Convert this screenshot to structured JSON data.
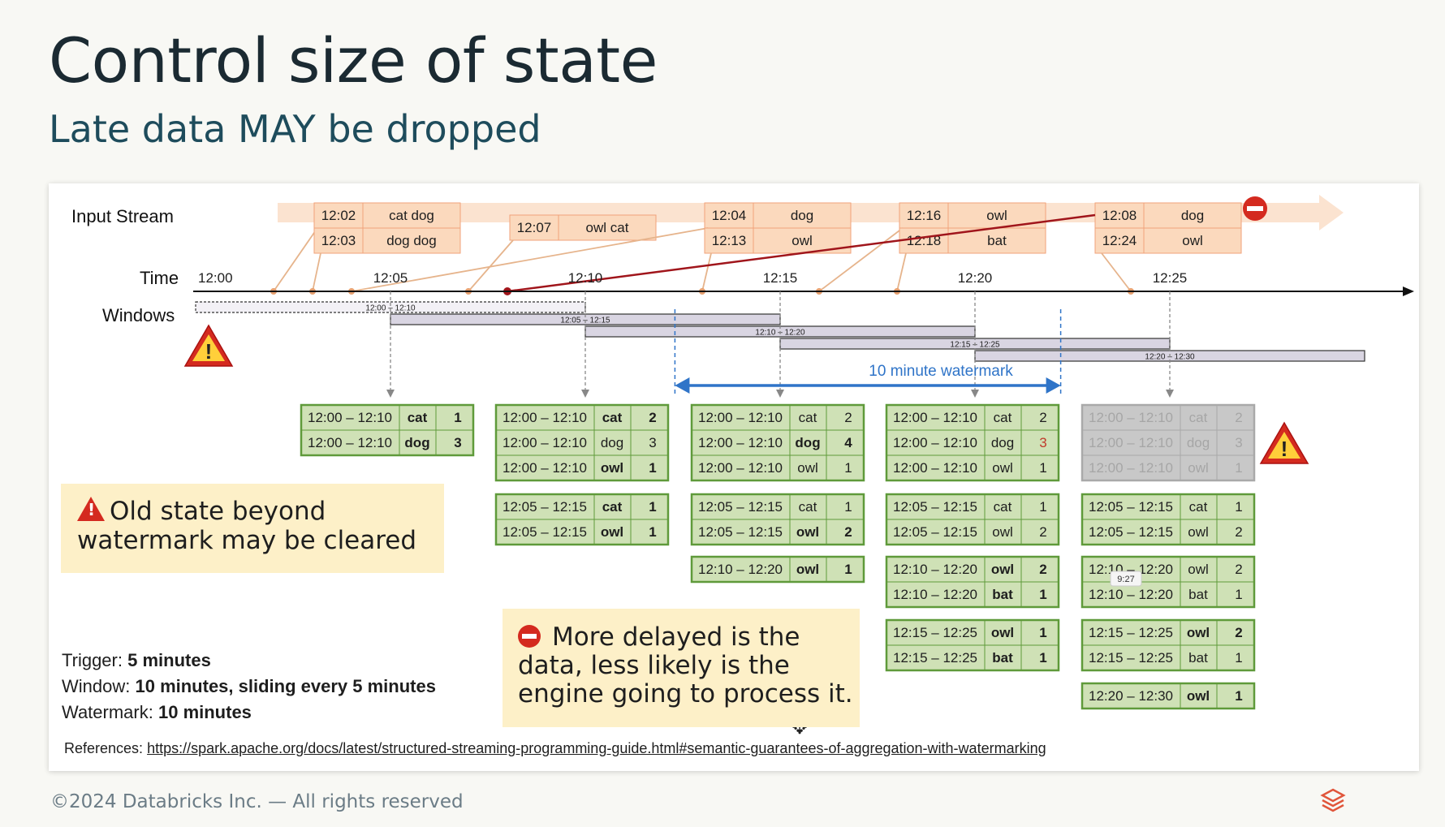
{
  "slide": {
    "title": "Control size of state",
    "subtitle": "Late data MAY be dropped",
    "footer": "©2024 Databricks Inc. — All rights reserved",
    "logo_icon": "databricks-logo-icon"
  },
  "diagram": {
    "row_labels": {
      "input": "Input Stream",
      "time": "Time",
      "windows": "Windows"
    },
    "time_ticks": [
      "12:00",
      "12:05",
      "12:10",
      "12:15",
      "12:20",
      "12:25"
    ],
    "events": [
      {
        "rows": [
          [
            "12:02",
            "cat dog"
          ],
          [
            "12:03",
            "dog dog"
          ]
        ]
      },
      {
        "rows": [
          [
            "12:07",
            "owl cat"
          ]
        ]
      },
      {
        "rows": [
          [
            "12:04",
            "dog"
          ],
          [
            "12:13",
            "owl"
          ]
        ]
      },
      {
        "rows": [
          [
            "12:16",
            "owl"
          ],
          [
            "12:18",
            "bat"
          ]
        ]
      },
      {
        "rows": [
          [
            "12:08",
            "dog"
          ],
          [
            "12:24",
            "owl"
          ]
        ]
      }
    ],
    "windows": [
      "12:00 – 12:10",
      "12:05 – 12:15",
      "12:10 – 12:20",
      "12:15 – 12:25",
      "12:20 – 12:30"
    ],
    "watermark_label": "10 minute watermark",
    "state_columns": [
      {
        "groups": [
          [
            [
              "12:00 – 12:10",
              "cat",
              "1",
              1
            ],
            [
              "12:00 – 12:10",
              "dog",
              "3",
              1
            ]
          ]
        ]
      },
      {
        "groups": [
          [
            [
              "12:00 – 12:10",
              "cat",
              "2",
              1
            ],
            [
              "12:00 – 12:10",
              "dog",
              "3",
              0
            ],
            [
              "12:00 – 12:10",
              "owl",
              "1",
              1
            ]
          ],
          [
            [
              "12:05 – 12:15",
              "cat",
              "1",
              1
            ],
            [
              "12:05 – 12:15",
              "owl",
              "1",
              1
            ]
          ]
        ]
      },
      {
        "groups": [
          [
            [
              "12:00 – 12:10",
              "cat",
              "2",
              0
            ],
            [
              "12:00 – 12:10",
              "dog",
              "4",
              1
            ],
            [
              "12:00 – 12:10",
              "owl",
              "1",
              0
            ]
          ],
          [
            [
              "12:05 – 12:15",
              "cat",
              "1",
              0
            ],
            [
              "12:05 – 12:15",
              "owl",
              "2",
              1
            ]
          ],
          [
            [
              "12:10 – 12:20",
              "owl",
              "1",
              1
            ]
          ]
        ]
      },
      {
        "groups": [
          [
            [
              "12:00 – 12:10",
              "cat",
              "2",
              0
            ],
            [
              "12:00 – 12:10",
              "dog",
              "3",
              0
            ],
            [
              "12:00 – 12:10",
              "owl",
              "1",
              0
            ]
          ],
          [
            [
              "12:05 – 12:15",
              "cat",
              "1",
              0
            ],
            [
              "12:05 – 12:15",
              "owl",
              "2",
              0
            ]
          ],
          [
            [
              "12:10 – 12:20",
              "owl",
              "2",
              1
            ],
            [
              "12:10 – 12:20",
              "bat",
              "1",
              1
            ]
          ],
          [
            [
              "12:15 – 12:25",
              "owl",
              "1",
              1
            ],
            [
              "12:15 – 12:25",
              "bat",
              "1",
              1
            ]
          ]
        ]
      },
      {
        "groups": [
          [
            [
              "12:00 – 12:10",
              "cat",
              "2",
              0
            ],
            [
              "12:00 – 12:10",
              "dog",
              "3",
              0
            ],
            [
              "12:00 – 12:10",
              "owl",
              "1",
              0
            ]
          ],
          [
            [
              "12:05 – 12:15",
              "cat",
              "1",
              0
            ],
            [
              "12:05 – 12:15",
              "owl",
              "2",
              0
            ]
          ],
          [
            [
              "12:10 – 12:20",
              "owl",
              "2",
              0
            ],
            [
              "12:10 – 12:20",
              "bat",
              "1",
              0
            ]
          ],
          [
            [
              "12:15 – 12:25",
              "owl",
              "2",
              1
            ],
            [
              "12:15 – 12:25",
              "bat",
              "1",
              0
            ]
          ],
          [
            [
              "12:20 – 12:30",
              "owl",
              "1",
              1
            ]
          ]
        ]
      }
    ],
    "cleared_group": {
      "column": 4,
      "group": 0
    },
    "video_timestamp": "9:27"
  },
  "callouts": {
    "state_cleared": "Old state beyond watermark may be cleared",
    "delayed_data": "More delayed is the data, less likely is the engine going to process it."
  },
  "settings": {
    "trigger_label": "Trigger:",
    "trigger_value": "5 minutes",
    "window_label": "Window:",
    "window_value": "10 minutes, sliding every  5 minutes",
    "watermark_label": "Watermark:",
    "watermark_value": "10 minutes"
  },
  "references": {
    "label": "References:",
    "link": "https://spark.apache.org/docs/latest/structured-streaming-programming-guide.html#semantic-guarantees-of-aggregation-with-watermarking"
  },
  "colors": {
    "event_box": "#fbd9bd",
    "event_border": "#f0a27a",
    "stream_arrow": "#fbe3d0",
    "state_fill": "#cfe1b6",
    "state_border": "#5f9a3a",
    "cleared_fill": "#c8c8c8",
    "window_fill": "#d9d5e2",
    "watermark": "#2f74c8",
    "late_line": "#a0151b",
    "warning": "#d42a1f"
  }
}
